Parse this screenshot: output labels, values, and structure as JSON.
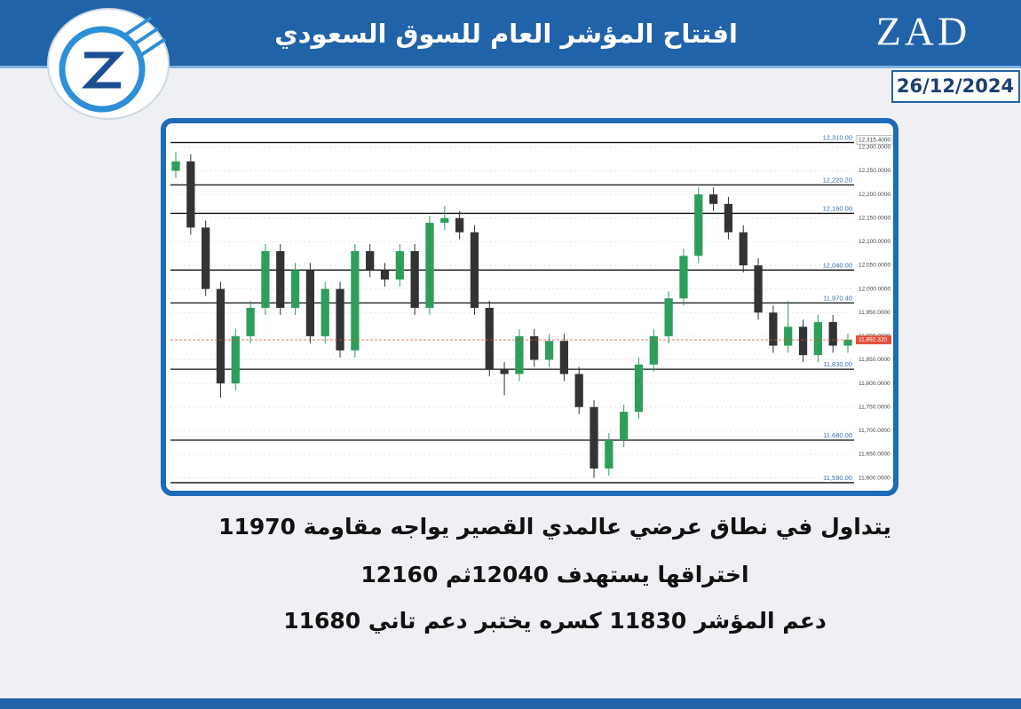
{
  "header": {
    "title": "افتتاح المؤشر العام للسوق السعودي",
    "brand": "ZAD",
    "date": "26/12/2024"
  },
  "chart_data": {
    "type": "candlestick",
    "open": [
      12250,
      12270,
      12130,
      12000,
      11800,
      11900,
      11960,
      12080,
      11960,
      12040,
      11900,
      12000,
      11870,
      12080,
      12040,
      12020,
      12080,
      11960,
      12140,
      12150,
      12120,
      11960,
      11830,
      11820,
      11900,
      11850,
      11890,
      11820,
      11750,
      11620,
      11680,
      11740,
      11840,
      11900,
      11980,
      12070,
      12200,
      12180,
      12120,
      12050,
      11950,
      11880,
      11920,
      11860,
      11930,
      11880
    ],
    "high": [
      12290,
      12285,
      12145,
      12015,
      11915,
      11975,
      12095,
      12095,
      12055,
      12055,
      12015,
      12015,
      12095,
      12095,
      12055,
      12095,
      12095,
      12155,
      12175,
      12165,
      12135,
      11975,
      11845,
      11915,
      11915,
      11905,
      11905,
      11835,
      11765,
      11695,
      11755,
      11855,
      11915,
      11995,
      12085,
      12215,
      12215,
      12195,
      12135,
      12065,
      11965,
      11975,
      11935,
      11945,
      11945,
      11905
    ],
    "low": [
      12235,
      12115,
      11985,
      11770,
      11785,
      11885,
      11945,
      11945,
      11945,
      11885,
      11885,
      11855,
      11855,
      12025,
      12005,
      12005,
      11945,
      11945,
      12125,
      12105,
      11945,
      11815,
      11775,
      11805,
      11835,
      11835,
      11805,
      11735,
      11600,
      11605,
      11665,
      11725,
      11825,
      11885,
      11965,
      12055,
      12165,
      12105,
      12035,
      11935,
      11865,
      11865,
      11845,
      11845,
      11865,
      11865
    ],
    "close": [
      12270,
      12130,
      12000,
      11800,
      11900,
      11960,
      12080,
      11960,
      12040,
      11900,
      12000,
      11870,
      12080,
      12040,
      12020,
      12080,
      11960,
      12140,
      12150,
      12120,
      11960,
      11830,
      11820,
      11900,
      11850,
      11890,
      11820,
      11750,
      11620,
      11680,
      11740,
      11840,
      11900,
      11980,
      12070,
      12200,
      12180,
      12120,
      12050,
      11950,
      11880,
      11920,
      11860,
      11930,
      11880,
      11892.32
    ],
    "up_color": "#2e9e5b",
    "down_color": "#333333",
    "ylim": [
      11588,
      12343
    ],
    "yticks": [
      {
        "value": 11600,
        "label": "11,600.0000"
      },
      {
        "value": 11650,
        "label": "11,650.0000"
      },
      {
        "value": 11700,
        "label": "11,700.0000"
      },
      {
        "value": 11750,
        "label": "11,750.0000"
      },
      {
        "value": 11800,
        "label": "11,800.0000"
      },
      {
        "value": 11850,
        "label": "11,850.0000"
      },
      {
        "value": 11900,
        "label": "11,900.0000"
      },
      {
        "value": 11950,
        "label": "11,950.0000"
      },
      {
        "value": 12000,
        "label": "12,000.0000"
      },
      {
        "value": 12050,
        "label": "12,050.0000"
      },
      {
        "value": 12100,
        "label": "12,100.0000"
      },
      {
        "value": 12150,
        "label": "12,150.0000"
      },
      {
        "value": 12200,
        "label": "12,200.0000"
      },
      {
        "value": 12250,
        "label": "12,250.0000"
      },
      {
        "value": 12300,
        "label": "12,300.0000"
      }
    ],
    "grid": true,
    "levels": [
      {
        "value": 12310,
        "label": "12,310.00"
      },
      {
        "value": 12220.2,
        "label": "12,220.20"
      },
      {
        "value": 12160,
        "label": "12,160.00"
      },
      {
        "value": 12040,
        "label": "12,040.00"
      },
      {
        "value": 11970.4,
        "label": "11,970.40"
      },
      {
        "value": 11830,
        "label": "11,830.00"
      },
      {
        "value": 11680,
        "label": "11,680.00"
      },
      {
        "value": 11590,
        "label": "11,590.00"
      }
    ],
    "top_price": {
      "value": 12315.4,
      "label": "12,315.4000"
    },
    "current_price": {
      "value": 11892.32,
      "label": "11,892.320",
      "color": "#e0533d"
    }
  },
  "body": {
    "lines": [
      "يتداول في نطاق عرضي عالمدي القصير يواجه مقاومة 11970",
      "اختراقها يستهدف 12040ثم 12160",
      "دعم المؤشر 11830 كسره يختبر دعم تاني 11680"
    ]
  }
}
